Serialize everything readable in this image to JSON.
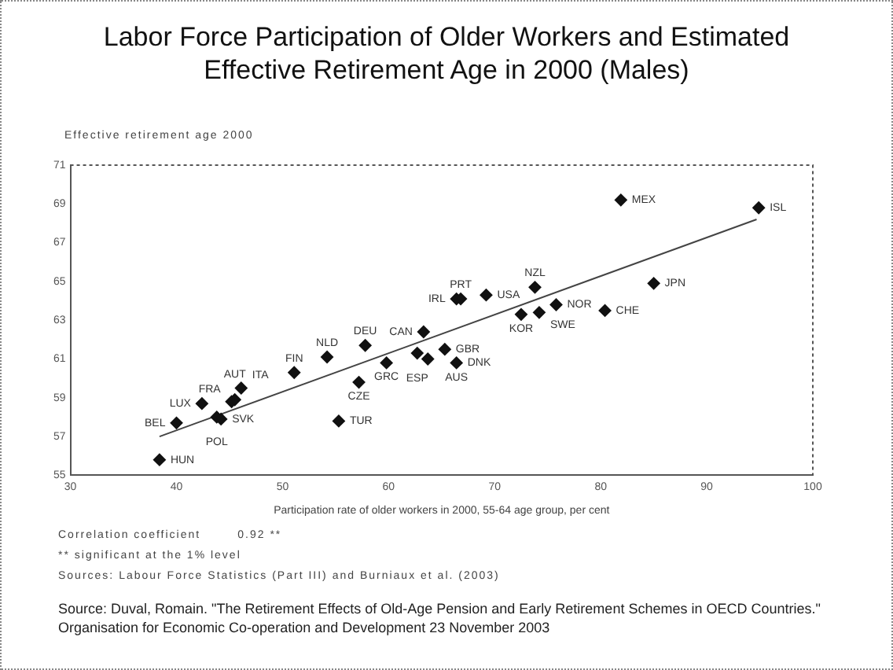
{
  "chart_data": {
    "type": "scatter",
    "title": "Labor Force Participation of Older Workers and Estimated Effective Retirement Age in 2000 (Males)",
    "ylabel": "Effective retirement age 2000",
    "xlabel": "Participation rate of older workers in 2000, 55-64 age group, per cent",
    "xlim": [
      30,
      100
    ],
    "xticks": [
      30,
      40,
      50,
      60,
      70,
      80,
      90,
      100
    ],
    "ylim": [
      55,
      71
    ],
    "yticks": [
      55,
      57,
      59,
      61,
      63,
      65,
      67,
      69,
      71
    ],
    "grid": false,
    "legend": false,
    "marker": "diamond",
    "series": [
      {
        "type": "scatter",
        "color": "#111111",
        "x": [
          38.4,
          40.0,
          42.4,
          43.8,
          44.2,
          45.2,
          45.5,
          46.1,
          51.1,
          54.2,
          57.8,
          59.8,
          62.7,
          63.7,
          57.2,
          55.3,
          63.3,
          66.4,
          66.8,
          65.3,
          66.4,
          69.2,
          73.8,
          72.5,
          74.2,
          75.8,
          80.4,
          85.0,
          81.9,
          94.9
        ],
        "values": [
          55.8,
          57.7,
          58.7,
          58.0,
          57.9,
          58.8,
          58.9,
          59.5,
          60.3,
          61.1,
          61.7,
          60.8,
          61.3,
          61.0,
          59.8,
          57.8,
          62.4,
          64.1,
          64.1,
          61.5,
          60.8,
          64.3,
          64.7,
          63.3,
          63.4,
          63.8,
          63.5,
          64.9,
          69.2,
          68.8
        ]
      },
      {
        "type": "line",
        "color": "#444444",
        "marker": "none",
        "x": [
          38.4,
          94.7
        ],
        "values": [
          57.0,
          68.2
        ]
      }
    ],
    "annotations": [
      {
        "text": "HUN",
        "x": 38.4,
        "y": 55.8
      },
      {
        "text": "BEL",
        "x": 40.0,
        "y": 57.7
      },
      {
        "text": "LUX",
        "x": 42.4,
        "y": 58.7
      },
      {
        "text": "POL",
        "x": 43.8,
        "y": 58.0
      },
      {
        "text": "SVK",
        "x": 44.2,
        "y": 57.9
      },
      {
        "text": "FRA",
        "x": 45.2,
        "y": 58.8
      },
      {
        "text": "AUT",
        "x": 45.5,
        "y": 58.9
      },
      {
        "text": "ITA",
        "x": 46.1,
        "y": 59.5
      },
      {
        "text": "FIN",
        "x": 51.1,
        "y": 60.3
      },
      {
        "text": "NLD",
        "x": 54.2,
        "y": 61.1
      },
      {
        "text": "DEU",
        "x": 57.8,
        "y": 61.7
      },
      {
        "text": "GRC",
        "x": 59.8,
        "y": 60.8
      },
      {
        "text": "ESP",
        "x": 62.7,
        "y": 61.3
      },
      {
        "text": "AUS",
        "x": 63.7,
        "y": 61.0
      },
      {
        "text": "CZE",
        "x": 57.2,
        "y": 59.8
      },
      {
        "text": "TUR",
        "x": 55.3,
        "y": 57.8
      },
      {
        "text": "CAN",
        "x": 63.3,
        "y": 62.4
      },
      {
        "text": "IRL",
        "x": 66.4,
        "y": 64.1
      },
      {
        "text": "PRT",
        "x": 66.8,
        "y": 64.1
      },
      {
        "text": "GBR",
        "x": 65.3,
        "y": 61.5
      },
      {
        "text": "DNK",
        "x": 66.4,
        "y": 60.8
      },
      {
        "text": "USA",
        "x": 69.2,
        "y": 64.3
      },
      {
        "text": "NZL",
        "x": 73.8,
        "y": 64.7
      },
      {
        "text": "KOR",
        "x": 72.5,
        "y": 63.3
      },
      {
        "text": "SWE",
        "x": 74.2,
        "y": 63.4
      },
      {
        "text": "NOR",
        "x": 75.8,
        "y": 63.8
      },
      {
        "text": "CHE",
        "x": 80.4,
        "y": 63.5
      },
      {
        "text": "JPN",
        "x": 85.0,
        "y": 64.9
      },
      {
        "text": "MEX",
        "x": 81.9,
        "y": 69.2
      },
      {
        "text": "ISL",
        "x": 94.9,
        "y": 68.8
      },
      "Correlation coefficient        0.92 **",
      "** significant at the 1% level",
      "Sources: Labour Force Statistics (Part III) and Burniaux et al. (2003)",
      "Source:  Duval, Romain.  \"The Retirement Effects of Old-Age Pension and Early Retirement Schemes in OECD Countries.\"  Organisation for Economic Co-operation and Development  23 November 2003"
    ]
  }
}
